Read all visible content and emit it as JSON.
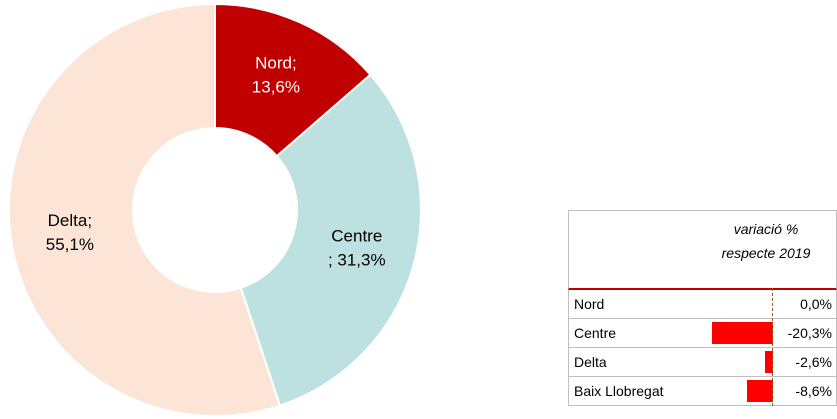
{
  "chart_data": {
    "type": "donut",
    "categories": [
      "Nord;",
      "Centre",
      "Delta;"
    ],
    "values": [
      13.6,
      31.3,
      55.1
    ],
    "value_labels": [
      "13,6%",
      "; 31,3%",
      "55,1%"
    ],
    "colors": [
      "#c00000",
      "#bde0e0",
      "#fce4d6"
    ],
    "label_colors": [
      "#ffffff",
      "#000000",
      "#000000"
    ]
  },
  "table": {
    "header": "variació % respecte 2019",
    "rows": [
      {
        "name": "Nord",
        "value": 0.0,
        "label": "0,0%"
      },
      {
        "name": "Centre",
        "value": -20.3,
        "label": "-20,3%"
      },
      {
        "name": "Delta",
        "value": -2.6,
        "label": "-2,6%"
      },
      {
        "name": "Baix Llobregat",
        "value": -8.6,
        "label": "-8,6%"
      }
    ]
  }
}
